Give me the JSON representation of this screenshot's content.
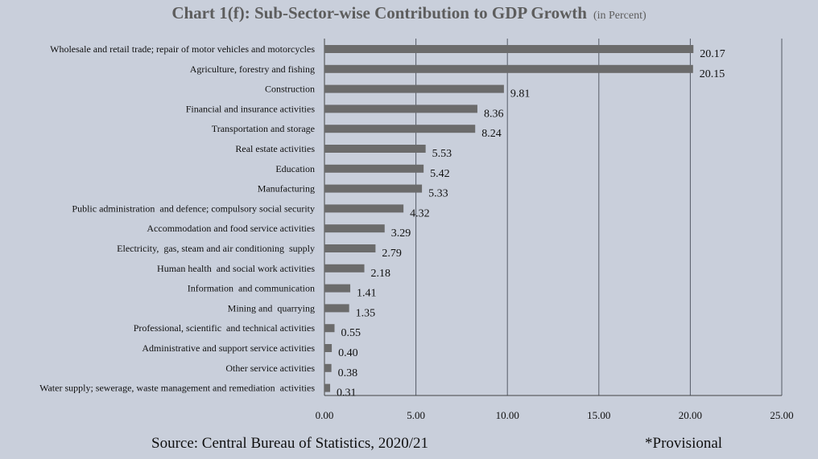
{
  "header": {
    "title": "Chart 1(f): Sub-Sector-wise Contribution to GDP Growth",
    "unit": "(in Percent)"
  },
  "chart_data": {
    "type": "bar",
    "orientation": "horizontal",
    "categories": [
      "Wholesale and retail trade; repair of motor vehicles and motorcycles",
      "Agriculture, forestry and fishing",
      "Construction",
      "Financial and insurance activities",
      "Transportation and storage",
      "Real estate activities",
      "Education",
      "Manufacturing",
      "Public administration  and defence; compulsory social security",
      "Accommodation and food service activities",
      "Electricity,  gas, steam and air conditioning  supply",
      "Human health  and social work activities",
      "Information  and communication",
      "Mining and  quarrying",
      "Professional, scientific  and technical activities",
      "Administrative and support service activities",
      "Other service activities",
      "Water supply; sewerage, waste management and remediation  activities"
    ],
    "values": [
      20.17,
      20.15,
      9.81,
      8.36,
      8.24,
      5.53,
      5.42,
      5.33,
      4.32,
      3.29,
      2.79,
      2.18,
      1.41,
      1.35,
      0.55,
      0.4,
      0.38,
      0.31
    ],
    "value_labels": [
      "20.17",
      "20.15",
      "9.81",
      "8.36",
      "8.24",
      "5.53",
      "5.42",
      "5.33",
      "4.32",
      "3.29",
      "2.79",
      "2.18",
      "1.41",
      "1.35",
      "0.55",
      "0.40",
      "0.38",
      "0.31"
    ],
    "xlim": [
      0,
      25
    ],
    "x_ticks": [
      0,
      5,
      10,
      15,
      20,
      25
    ],
    "x_tick_labels": [
      "0.00",
      "5.00",
      "10.00",
      "15.00",
      "20.00",
      "25.00"
    ],
    "grid": "vertical",
    "legend": "none",
    "bar_color": "#6b6b6b",
    "grid_color": "#555b66",
    "background_color": "#c9cfdb"
  },
  "footer": {
    "source": "Source: Central Bureau of Statistics, 2020/21",
    "note": "*Provisional"
  }
}
